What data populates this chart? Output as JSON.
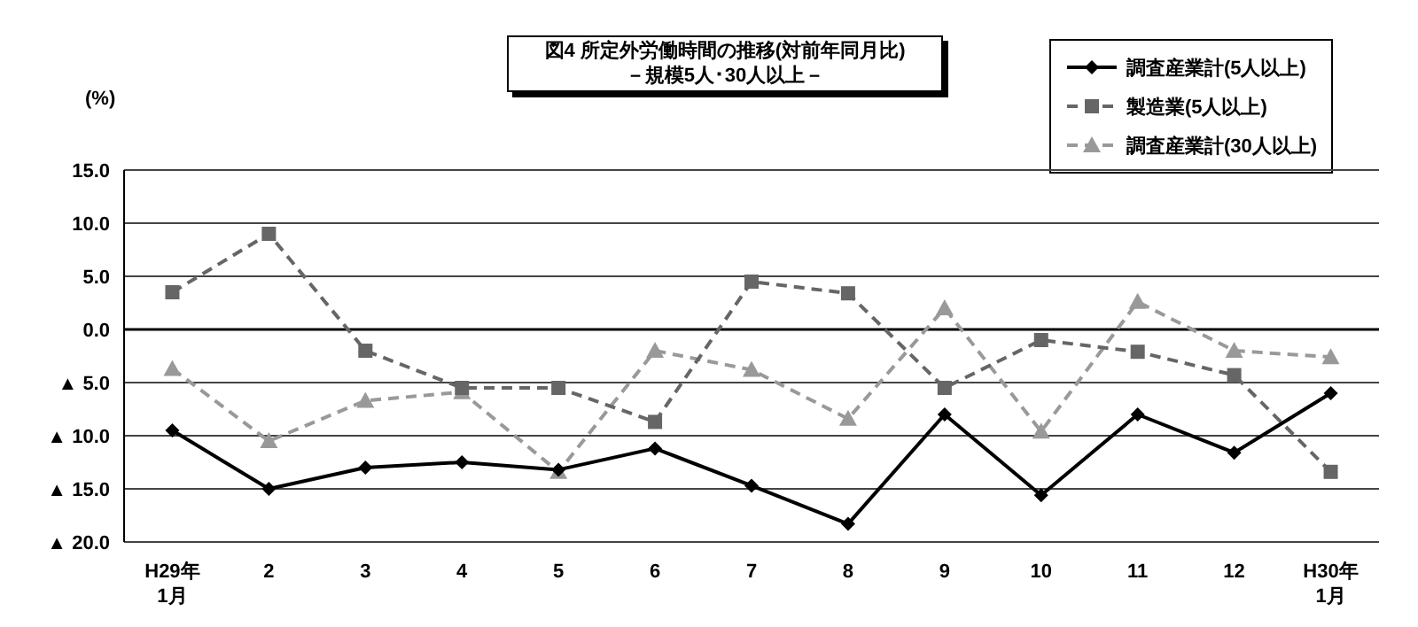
{
  "chart_data": {
    "type": "line",
    "title": "図4  所定外労働時間の推移(対前年同月比)",
    "subtitle": "－規模5人･30人以上－",
    "ylabel": "(%)",
    "categories": [
      "H29年\n1月",
      "2",
      "3",
      "4",
      "5",
      "6",
      "7",
      "8",
      "9",
      "10",
      "11",
      "12",
      "H30年\n1月"
    ],
    "series": [
      {
        "name": "調査産業計(5人以上)",
        "color": "#000000",
        "marker": "diamond",
        "line_style": "solid",
        "values": [
          -9.5,
          -15.0,
          -13.0,
          -12.5,
          -13.2,
          -11.2,
          -14.7,
          -18.3,
          -8.0,
          -15.6,
          -8.0,
          -11.6,
          -6.0
        ]
      },
      {
        "name": "製造業(5人以上)",
        "color": "#666666",
        "marker": "square",
        "line_style": "dashed",
        "values": [
          3.5,
          9.0,
          -2.0,
          -5.5,
          -5.5,
          -8.7,
          4.5,
          3.4,
          -5.5,
          -1.0,
          -2.1,
          -4.3,
          -13.4
        ]
      },
      {
        "name": "調査産業計(30人以上)",
        "color": "#999999",
        "marker": "triangle",
        "line_style": "dashed",
        "values": [
          -3.7,
          -10.5,
          -6.7,
          -5.9,
          -13.4,
          -2.0,
          -3.8,
          -8.4,
          2.0,
          -9.6,
          2.6,
          -2.0,
          -2.6
        ]
      }
    ],
    "ylim": [
      -20,
      15
    ],
    "yticks": [
      {
        "value": 15,
        "label": "15.0"
      },
      {
        "value": 10,
        "label": "10.0"
      },
      {
        "value": 5,
        "label": "5.0"
      },
      {
        "value": 0,
        "label": "0.0"
      },
      {
        "value": -5,
        "label": "▲ 5.0"
      },
      {
        "value": -10,
        "label": "▲ 10.0"
      },
      {
        "value": -15,
        "label": "▲ 15.0"
      },
      {
        "value": -20,
        "label": "▲ 20.0"
      }
    ],
    "ref_lines": [
      {
        "axis": "y",
        "value": 0,
        "color": "#000000"
      }
    ],
    "grid": "y",
    "legend": "top right"
  }
}
